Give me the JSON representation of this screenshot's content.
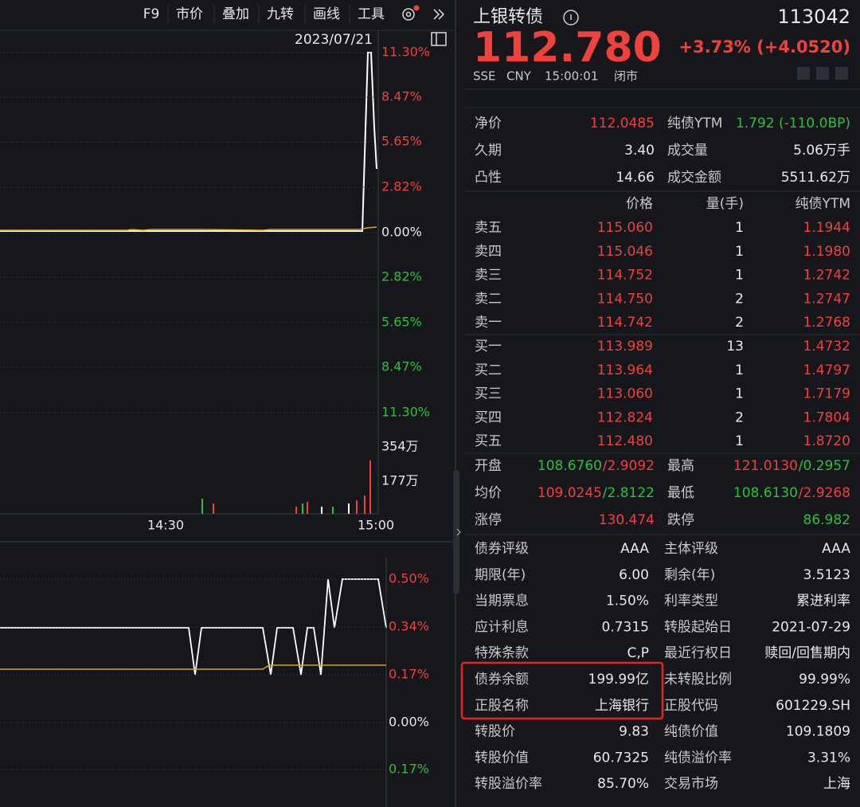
{
  "toolbar": [
    "F9",
    "市价",
    "叠加",
    "九转",
    "画线",
    "工具"
  ],
  "chart": {
    "date": "2023/07/21",
    "price_axis": [
      "11.30%",
      "8.47%",
      "5.65%",
      "2.82%",
      "0.00%",
      "2.82%",
      "5.65%",
      "8.47%",
      "11.30%"
    ],
    "volume_axis": [
      "354万",
      "177万"
    ],
    "time_axis": [
      "14:30",
      "15:00"
    ],
    "premium_axis": [
      "0.50%",
      "0.34%",
      "0.17%",
      "0.00%",
      "0.17%"
    ]
  },
  "quote": {
    "name": "上银转债",
    "code": "113042",
    "price": "112.780",
    "change": "+3.73% (+4.0520)",
    "exchange": "SSE",
    "currency": "CNY",
    "time": "15:00:01",
    "status": "闭市"
  },
  "stats": [
    [
      "净价",
      "112.0485",
      "纯债YTM",
      "1.792 (-110.0BP)"
    ],
    [
      "久期",
      "3.40",
      "成交量",
      "5.06万手"
    ],
    [
      "凸性",
      "14.66",
      "成交金额",
      "5511.62万"
    ]
  ],
  "order_book": {
    "header": [
      "价格",
      "量(手)",
      "纯债YTM"
    ],
    "asks": [
      [
        "卖五",
        "115.060",
        "1",
        "1.1944"
      ],
      [
        "卖四",
        "115.046",
        "1",
        "1.1980"
      ],
      [
        "卖三",
        "114.752",
        "1",
        "1.2742"
      ],
      [
        "卖二",
        "114.750",
        "2",
        "1.2747"
      ],
      [
        "卖一",
        "114.742",
        "2",
        "1.2768"
      ]
    ],
    "bids": [
      [
        "买一",
        "113.989",
        "13",
        "1.4732"
      ],
      [
        "买二",
        "113.964",
        "1",
        "1.4797"
      ],
      [
        "买三",
        "113.060",
        "1",
        "1.7179"
      ],
      [
        "买四",
        "112.824",
        "2",
        "1.7804"
      ],
      [
        "买五",
        "112.480",
        "1",
        "1.8720"
      ]
    ]
  },
  "summary": [
    [
      {
        "label": "开盘",
        "value": "108.6760",
        "ytm": "/2.9092"
      },
      {
        "label": "最高",
        "value": "121.0130",
        "ytm": "/0.2957"
      }
    ],
    [
      {
        "label": "均价",
        "value": "109.0245",
        "ytm": "/2.8122"
      },
      {
        "label": "最低",
        "value": "108.6130",
        "ytm": "/2.9268"
      }
    ],
    [
      {
        "label": "涨停",
        "value": "130.474"
      },
      {
        "label": "跌停",
        "value": "86.982"
      }
    ]
  ],
  "info": [
    [
      "债券评级",
      "AAA",
      "主体评级",
      "AAA"
    ],
    [
      "期限(年)",
      "6.00",
      "剩余(年)",
      "3.5123"
    ],
    [
      "当期票息",
      "1.50%",
      "利率类型",
      "累进利率"
    ],
    [
      "应计利息",
      "0.7315",
      "转股起始日",
      "2021-07-29"
    ],
    [
      "特殊条款",
      "C,P",
      "最近行权日",
      "赎回/回售期内"
    ],
    [
      "债券余额",
      "199.99亿",
      "未转股比例",
      "99.99%"
    ],
    [
      "正股名称",
      "上海银行",
      "正股代码",
      "601229.SH"
    ],
    [
      "转股价",
      "9.83",
      "纯债价值",
      "109.1809"
    ],
    [
      "转股价值",
      "60.7325",
      "纯债溢价率",
      "3.31%"
    ],
    [
      "转股溢价率",
      "85.70%",
      "交易市场",
      "上海"
    ]
  ]
}
